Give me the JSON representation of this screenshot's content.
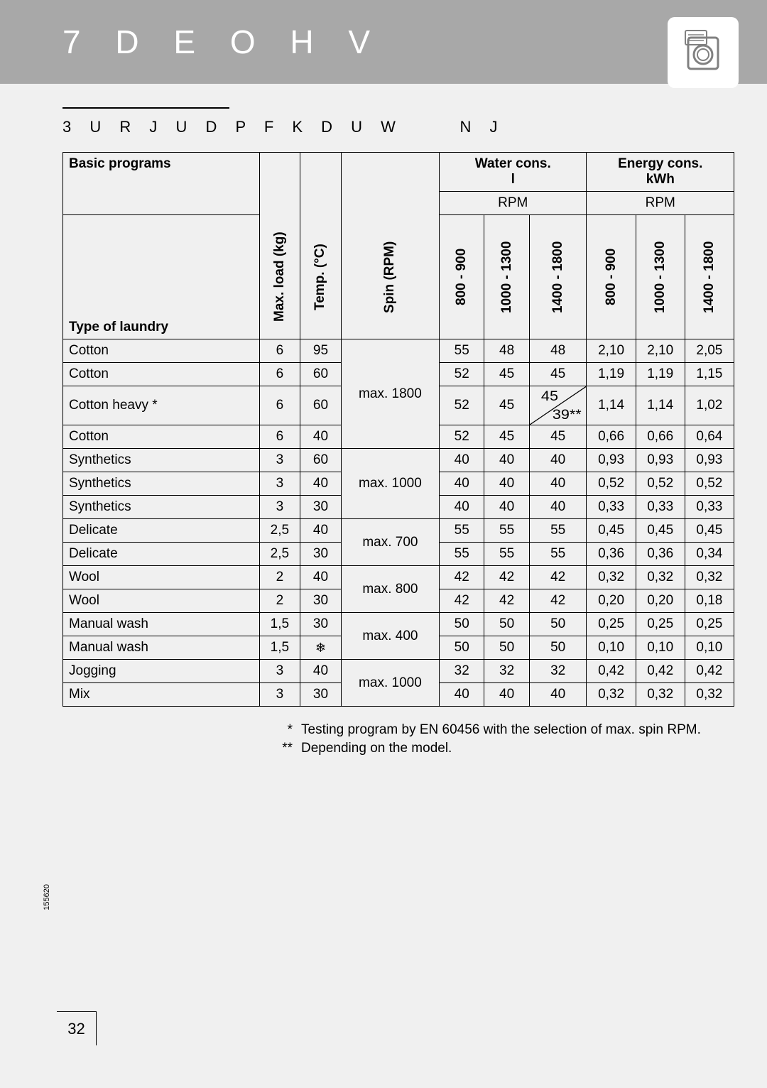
{
  "header": {
    "title": "7 D E O H V",
    "subtitle_left": "3 U R J U D P  F K D U W",
    "subtitle_right": "N J"
  },
  "table": {
    "headers": {
      "basic_programs": "Basic programs",
      "type_of_laundry": "Type of laundry",
      "max_load": "Max. load (kg)",
      "temp": "Temp. (°C)",
      "spin": "Spin (RPM)",
      "water_cons": "Water cons.\nl",
      "energy_cons": "Energy cons.\nkWh",
      "rpm": "RPM",
      "rpm_ranges": [
        "800 - 900",
        "1000 - 1300",
        "1400 - 1800",
        "800 - 900",
        "1000 - 1300",
        "1400 - 1800"
      ]
    },
    "spin_groups": [
      {
        "label": "max. 1800",
        "span": 4
      },
      {
        "label": "max. 1000",
        "span": 3
      },
      {
        "label": "max. 700",
        "span": 2
      },
      {
        "label": "max. 800",
        "span": 2
      },
      {
        "label": "max. 400",
        "span": 2
      },
      {
        "label": "max. 1000",
        "span": 2
      }
    ],
    "rows": [
      {
        "name": "Cotton",
        "load": "6",
        "temp": "95",
        "w": [
          "55",
          "48",
          "48"
        ],
        "e": [
          "2,10",
          "2,10",
          "2,05"
        ]
      },
      {
        "name": "Cotton",
        "load": "6",
        "temp": "60",
        "w": [
          "52",
          "45",
          "45"
        ],
        "e": [
          "1,19",
          "1,19",
          "1,15"
        ]
      },
      {
        "name": "Cotton heavy *",
        "load": "6",
        "temp": "60",
        "w": [
          "52",
          "45",
          "SPLIT"
        ],
        "e": [
          "1,14",
          "1,14",
          "1,02"
        ],
        "split": {
          "top": "45",
          "bottom": "39**"
        }
      },
      {
        "name": "Cotton",
        "load": "6",
        "temp": "40",
        "w": [
          "52",
          "45",
          "45"
        ],
        "e": [
          "0,66",
          "0,66",
          "0,64"
        ]
      },
      {
        "name": "Synthetics",
        "load": "3",
        "temp": "60",
        "w": [
          "40",
          "40",
          "40"
        ],
        "e": [
          "0,93",
          "0,93",
          "0,93"
        ]
      },
      {
        "name": "Synthetics",
        "load": "3",
        "temp": "40",
        "w": [
          "40",
          "40",
          "40"
        ],
        "e": [
          "0,52",
          "0,52",
          "0,52"
        ]
      },
      {
        "name": "Synthetics",
        "load": "3",
        "temp": "30",
        "w": [
          "40",
          "40",
          "40"
        ],
        "e": [
          "0,33",
          "0,33",
          "0,33"
        ]
      },
      {
        "name": "Delicate",
        "load": "2,5",
        "temp": "40",
        "w": [
          "55",
          "55",
          "55"
        ],
        "e": [
          "0,45",
          "0,45",
          "0,45"
        ]
      },
      {
        "name": "Delicate",
        "load": "2,5",
        "temp": "30",
        "w": [
          "55",
          "55",
          "55"
        ],
        "e": [
          "0,36",
          "0,36",
          "0,34"
        ]
      },
      {
        "name": "Wool",
        "load": "2",
        "temp": "40",
        "w": [
          "42",
          "42",
          "42"
        ],
        "e": [
          "0,32",
          "0,32",
          "0,32"
        ]
      },
      {
        "name": "Wool",
        "load": "2",
        "temp": "30",
        "w": [
          "42",
          "42",
          "42"
        ],
        "e": [
          "0,20",
          "0,20",
          "0,18"
        ]
      },
      {
        "name": "Manual wash",
        "load": "1,5",
        "temp": "30",
        "w": [
          "50",
          "50",
          "50"
        ],
        "e": [
          "0,25",
          "0,25",
          "0,25"
        ]
      },
      {
        "name": "Manual wash",
        "load": "1,5",
        "temp": "❄",
        "w": [
          "50",
          "50",
          "50"
        ],
        "e": [
          "0,10",
          "0,10",
          "0,10"
        ]
      },
      {
        "name": "Jogging",
        "load": "3",
        "temp": "40",
        "w": [
          "32",
          "32",
          "32"
        ],
        "e": [
          "0,42",
          "0,42",
          "0,42"
        ]
      },
      {
        "name": "Mix",
        "load": "3",
        "temp": "30",
        "w": [
          "40",
          "40",
          "40"
        ],
        "e": [
          "0,32",
          "0,32",
          "0,32"
        ]
      }
    ]
  },
  "footnotes": [
    {
      "mark": "*",
      "text": "Testing program by EN 60456 with the selection of max. spin RPM."
    },
    {
      "mark": "**",
      "text": "Depending on the model."
    }
  ],
  "side_number": "155620",
  "page_number": "32",
  "colors": {
    "header_bg": "#a8a8a8",
    "page_bg": "#f0f0f0",
    "text": "#000000",
    "header_text": "#ffffff"
  }
}
